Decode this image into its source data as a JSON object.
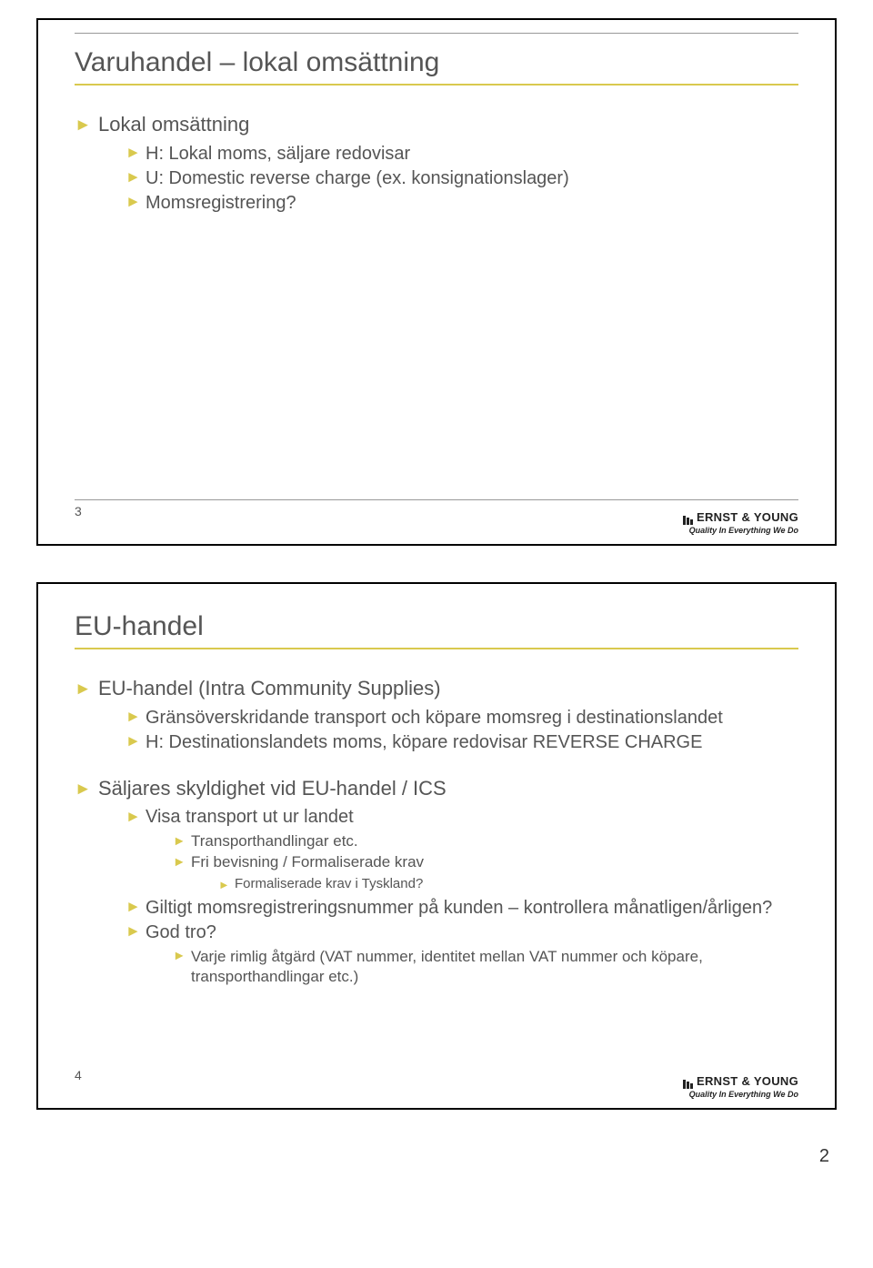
{
  "accent_color": "#d9c94e",
  "text_color": "#555555",
  "logo": {
    "name": "ERNST & YOUNG",
    "tagline": "Quality In Everything We Do"
  },
  "page_number": "2",
  "slide1": {
    "number": "3",
    "title": "Varuhandel – lokal omsättning",
    "l0_0": "Lokal omsättning",
    "l1_0": "H: Lokal moms, säljare redovisar",
    "l1_1": "U: Domestic reverse charge (ex. konsignationslager)",
    "l1_2": "Momsregistrering?"
  },
  "slide2": {
    "number": "4",
    "title": "EU-handel",
    "l0_0": "EU-handel (Intra Community Supplies)",
    "l1_0": "Gränsöverskridande transport och köpare momsreg i destinationslandet",
    "l1_1": "H: Destinationslandets moms, köpare redovisar REVERSE CHARGE",
    "l0_1": "Säljares skyldighet vid EU-handel / ICS",
    "l1_2": "Visa transport ut ur landet",
    "l2_0": "Transporthandlingar etc.",
    "l2_1": "Fri bevisning  / Formaliserade krav",
    "l3_0": "Formaliserade krav i Tyskland?",
    "l1_3": "Giltigt momsregistreringsnummer på kunden – kontrollera månatligen/årligen?",
    "l1_4": "God tro?",
    "l2_2": "Varje rimlig åtgärd (VAT nummer, identitet mellan VAT nummer och köpare, transporthandlingar etc.)"
  }
}
